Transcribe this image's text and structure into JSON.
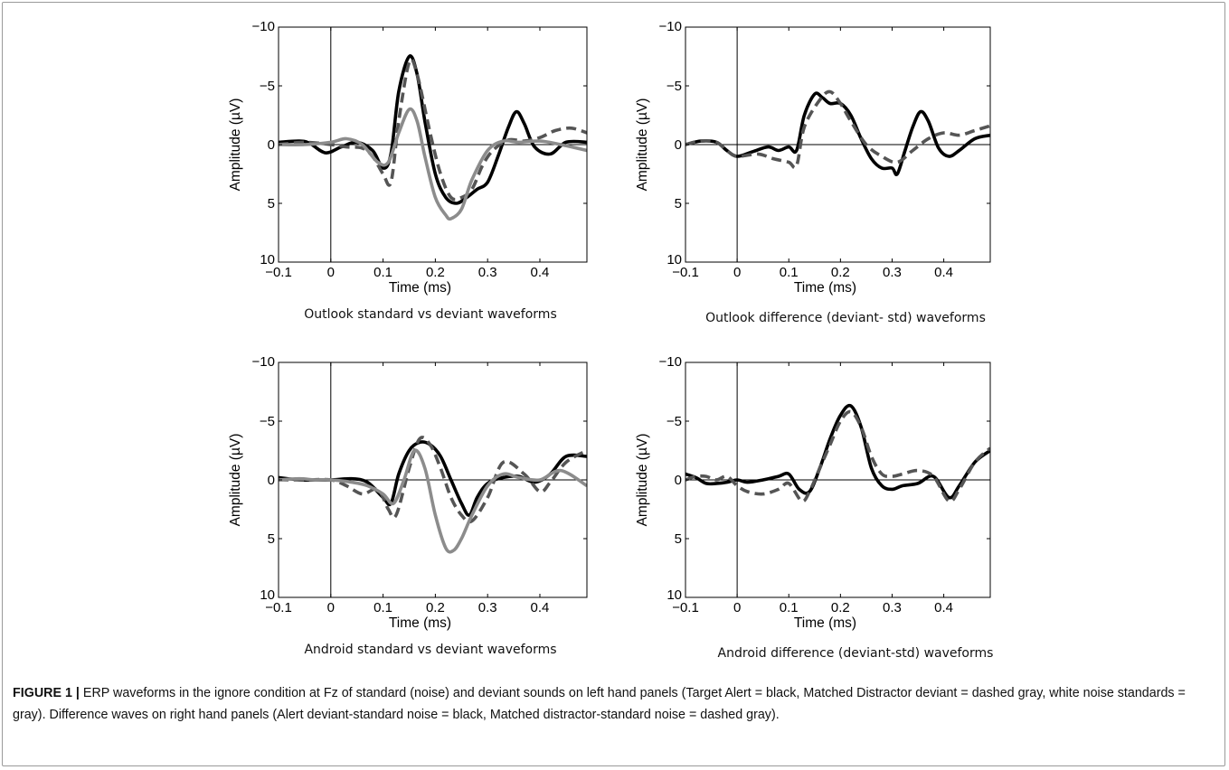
{
  "figure": {
    "label": "FIGURE 1 |",
    "caption": "ERP waveforms in the ignore condition at Fz of standard (noise) and deviant sounds on left hand panels (Target Alert = black, Matched Distractor deviant = dashed gray, white noise standards = gray). Difference waves on right hand panels (Alert deviant-standard noise = black, Matched distractor-standard noise = dashed gray)."
  },
  "colors": {
    "black": "#000000",
    "dashed_gray": "#555555",
    "gray": "#8c8c8c"
  },
  "chart_data": [
    {
      "type": "line",
      "title": "Outlook standard vs deviant waveforms",
      "xlabel": "Time (ms)",
      "ylabel": "Amplitude (µV)",
      "xlim": [
        -0.1,
        0.49
      ],
      "ylim": [
        10,
        -10
      ],
      "y_inverted": true,
      "xticks": [
        "−0.1",
        "0",
        "0.1",
        "0.2",
        "0.3",
        "0.4"
      ],
      "yticks": [
        "−10",
        "−5",
        "0",
        "5",
        "10"
      ],
      "series": [
        {
          "style": "black",
          "x": [
            -0.1,
            -0.06,
            -0.04,
            -0.01,
            0.02,
            0.05,
            0.08,
            0.1,
            0.115,
            0.13,
            0.15,
            0.165,
            0.18,
            0.2,
            0.22,
            0.24,
            0.26,
            0.28,
            0.3,
            0.32,
            0.34,
            0.355,
            0.37,
            0.39,
            0.42,
            0.45,
            0.49
          ],
          "y": [
            -0.2,
            -0.3,
            -0.1,
            0.7,
            0.2,
            -0.2,
            0.5,
            2.0,
            0.8,
            -4.5,
            -7.5,
            -6.0,
            -2.0,
            2.5,
            4.5,
            5.0,
            4.5,
            3.8,
            3.2,
            1.0,
            -1.5,
            -2.8,
            -1.8,
            0.2,
            0.8,
            -0.2,
            -0.2
          ]
        },
        {
          "style": "dashed_gray",
          "x": [
            -0.1,
            -0.05,
            0.0,
            0.03,
            0.06,
            0.08,
            0.1,
            0.115,
            0.13,
            0.15,
            0.165,
            0.19,
            0.21,
            0.23,
            0.25,
            0.27,
            0.29,
            0.31,
            0.34,
            0.37,
            0.4,
            0.43,
            0.46,
            0.49
          ],
          "y": [
            0.0,
            -0.2,
            0.0,
            0.2,
            0.3,
            1.0,
            2.5,
            3.2,
            -2.0,
            -7.0,
            -6.0,
            -1.0,
            2.5,
            4.5,
            4.5,
            3.8,
            1.8,
            0.5,
            -0.4,
            -0.3,
            -0.6,
            -1.2,
            -1.4,
            -1.0
          ]
        },
        {
          "style": "gray",
          "x": [
            -0.1,
            -0.05,
            0.0,
            0.03,
            0.06,
            0.09,
            0.11,
            0.13,
            0.15,
            0.165,
            0.18,
            0.2,
            0.22,
            0.23,
            0.25,
            0.27,
            0.3,
            0.33,
            0.36,
            0.4,
            0.44,
            0.49
          ],
          "y": [
            0.0,
            0.0,
            -0.2,
            -0.5,
            0.0,
            1.5,
            1.5,
            -1.0,
            -3.0,
            -2.0,
            1.0,
            4.5,
            6.0,
            6.3,
            5.5,
            3.0,
            0.5,
            -0.3,
            -0.2,
            -0.3,
            0.0,
            0.5
          ]
        }
      ]
    },
    {
      "type": "line",
      "title": "Outlook difference (deviant- std) waveforms",
      "xlabel": "Time (ms)",
      "ylabel": "Amplitude (µV)",
      "xlim": [
        -0.1,
        0.49
      ],
      "ylim": [
        10,
        -10
      ],
      "y_inverted": true,
      "xticks": [
        "−0.1",
        "0",
        "0.1",
        "0.2",
        "0.3",
        "0.4"
      ],
      "yticks": [
        "−10",
        "−5",
        "0",
        "5",
        "10"
      ],
      "series": [
        {
          "style": "black",
          "x": [
            -0.1,
            -0.07,
            -0.04,
            -0.02,
            0.0,
            0.03,
            0.06,
            0.08,
            0.1,
            0.115,
            0.13,
            0.15,
            0.165,
            0.18,
            0.2,
            0.22,
            0.24,
            0.26,
            0.28,
            0.3,
            0.31,
            0.325,
            0.34,
            0.355,
            0.37,
            0.39,
            0.41,
            0.43,
            0.46,
            0.49
          ],
          "y": [
            0.0,
            -0.3,
            -0.2,
            0.5,
            1.0,
            0.6,
            0.2,
            0.5,
            0.2,
            0.5,
            -2.5,
            -4.3,
            -4.0,
            -3.5,
            -3.5,
            -2.5,
            -0.5,
            1.2,
            2.0,
            2.0,
            2.5,
            0.5,
            -1.5,
            -2.8,
            -2.0,
            0.3,
            1.0,
            0.5,
            -0.5,
            -0.8
          ]
        },
        {
          "style": "dashed_gray",
          "x": [
            -0.1,
            -0.07,
            -0.04,
            -0.02,
            0.0,
            0.04,
            0.07,
            0.1,
            0.115,
            0.13,
            0.16,
            0.18,
            0.2,
            0.22,
            0.25,
            0.28,
            0.31,
            0.34,
            0.37,
            0.4,
            0.43,
            0.46,
            0.49
          ],
          "y": [
            0.0,
            -0.3,
            -0.2,
            0.5,
            1.0,
            0.8,
            1.2,
            1.5,
            1.8,
            -1.5,
            -3.8,
            -4.5,
            -3.5,
            -2.0,
            0.0,
            1.0,
            1.5,
            0.5,
            -0.5,
            -1.0,
            -0.8,
            -1.2,
            -1.6
          ]
        }
      ]
    },
    {
      "type": "line",
      "title": "Android standard vs deviant waveforms",
      "xlabel": "Time (ms)",
      "ylabel": "Amplitude (µV)",
      "xlim": [
        -0.1,
        0.49
      ],
      "ylim": [
        10,
        -10
      ],
      "y_inverted": true,
      "xticks": [
        "−0.1",
        "0",
        "0.1",
        "0.2",
        "0.3",
        "0.4"
      ],
      "yticks": [
        "−10",
        "−5",
        "0",
        "5",
        "10"
      ],
      "series": [
        {
          "style": "black",
          "x": [
            -0.1,
            -0.06,
            -0.03,
            0.0,
            0.04,
            0.07,
            0.1,
            0.115,
            0.13,
            0.15,
            0.17,
            0.19,
            0.21,
            0.23,
            0.25,
            0.265,
            0.28,
            0.3,
            0.33,
            0.36,
            0.39,
            0.42,
            0.45,
            0.49
          ],
          "y": [
            -0.2,
            0.0,
            0.0,
            0.0,
            -0.1,
            0.2,
            1.5,
            2.0,
            -0.5,
            -2.5,
            -3.2,
            -3.0,
            -2.0,
            0.0,
            2.0,
            3.0,
            1.5,
            0.3,
            -0.2,
            -0.3,
            0.2,
            -0.5,
            -2.0,
            -2.0
          ]
        },
        {
          "style": "dashed_gray",
          "x": [
            -0.1,
            -0.05,
            0.0,
            0.03,
            0.06,
            0.09,
            0.11,
            0.125,
            0.15,
            0.17,
            0.19,
            0.21,
            0.23,
            0.25,
            0.27,
            0.3,
            0.33,
            0.37,
            0.4,
            0.42,
            0.45,
            0.49
          ],
          "y": [
            0.0,
            0.0,
            0.0,
            0.5,
            1.2,
            0.8,
            2.5,
            3.0,
            -1.0,
            -3.5,
            -3.0,
            -1.0,
            1.5,
            3.0,
            3.5,
            1.5,
            -1.5,
            -0.5,
            1.0,
            0.2,
            -1.5,
            -2.5
          ]
        },
        {
          "style": "gray",
          "x": [
            -0.1,
            -0.06,
            -0.03,
            0.0,
            0.04,
            0.07,
            0.1,
            0.12,
            0.14,
            0.16,
            0.18,
            0.2,
            0.22,
            0.235,
            0.25,
            0.27,
            0.3,
            0.33,
            0.36,
            0.4,
            0.44,
            0.49
          ],
          "y": [
            0.0,
            -0.1,
            0.0,
            0.0,
            0.2,
            0.5,
            1.2,
            2.0,
            0.0,
            -2.5,
            -1.0,
            3.0,
            5.8,
            6.0,
            5.0,
            3.0,
            0.5,
            -0.5,
            -0.2,
            0.0,
            -0.8,
            0.5
          ]
        }
      ]
    },
    {
      "type": "line",
      "title": "Android difference (deviant-std) waveforms",
      "xlabel": "Time (ms)",
      "ylabel": "Amplitude (µV)",
      "xlim": [
        -0.1,
        0.49
      ],
      "ylim": [
        10,
        -10
      ],
      "y_inverted": true,
      "xticks": [
        "−0.1",
        "0",
        "0.1",
        "0.2",
        "0.3",
        "0.4"
      ],
      "yticks": [
        "−10",
        "−5",
        "0",
        "5",
        "10"
      ],
      "series": [
        {
          "style": "black",
          "x": [
            -0.1,
            -0.08,
            -0.06,
            -0.04,
            -0.02,
            0.0,
            0.02,
            0.05,
            0.08,
            0.1,
            0.12,
            0.14,
            0.16,
            0.18,
            0.2,
            0.22,
            0.24,
            0.26,
            0.28,
            0.3,
            0.32,
            0.35,
            0.38,
            0.41,
            0.43,
            0.46,
            0.49
          ],
          "y": [
            -0.5,
            -0.2,
            0.3,
            0.3,
            0.2,
            0.0,
            0.2,
            0.0,
            -0.3,
            -0.5,
            0.8,
            1.0,
            -1.0,
            -3.5,
            -5.5,
            -6.3,
            -4.5,
            -1.0,
            0.5,
            0.8,
            0.5,
            0.3,
            -0.3,
            1.5,
            0.5,
            -1.5,
            -2.5
          ]
        },
        {
          "style": "dashed_gray",
          "x": [
            -0.1,
            -0.08,
            -0.06,
            -0.04,
            -0.02,
            0.0,
            0.02,
            0.05,
            0.08,
            0.1,
            0.125,
            0.14,
            0.16,
            0.18,
            0.2,
            0.22,
            0.24,
            0.26,
            0.28,
            0.3,
            0.32,
            0.35,
            0.38,
            0.41,
            0.43,
            0.46,
            0.49
          ],
          "y": [
            0.0,
            -0.3,
            -0.3,
            0.0,
            -0.3,
            0.5,
            1.0,
            1.2,
            0.8,
            0.3,
            1.8,
            1.0,
            -1.0,
            -3.0,
            -5.0,
            -5.8,
            -4.5,
            -2.0,
            -0.5,
            -0.3,
            -0.5,
            -0.8,
            -0.3,
            1.8,
            0.8,
            -1.5,
            -2.7
          ]
        }
      ]
    }
  ]
}
